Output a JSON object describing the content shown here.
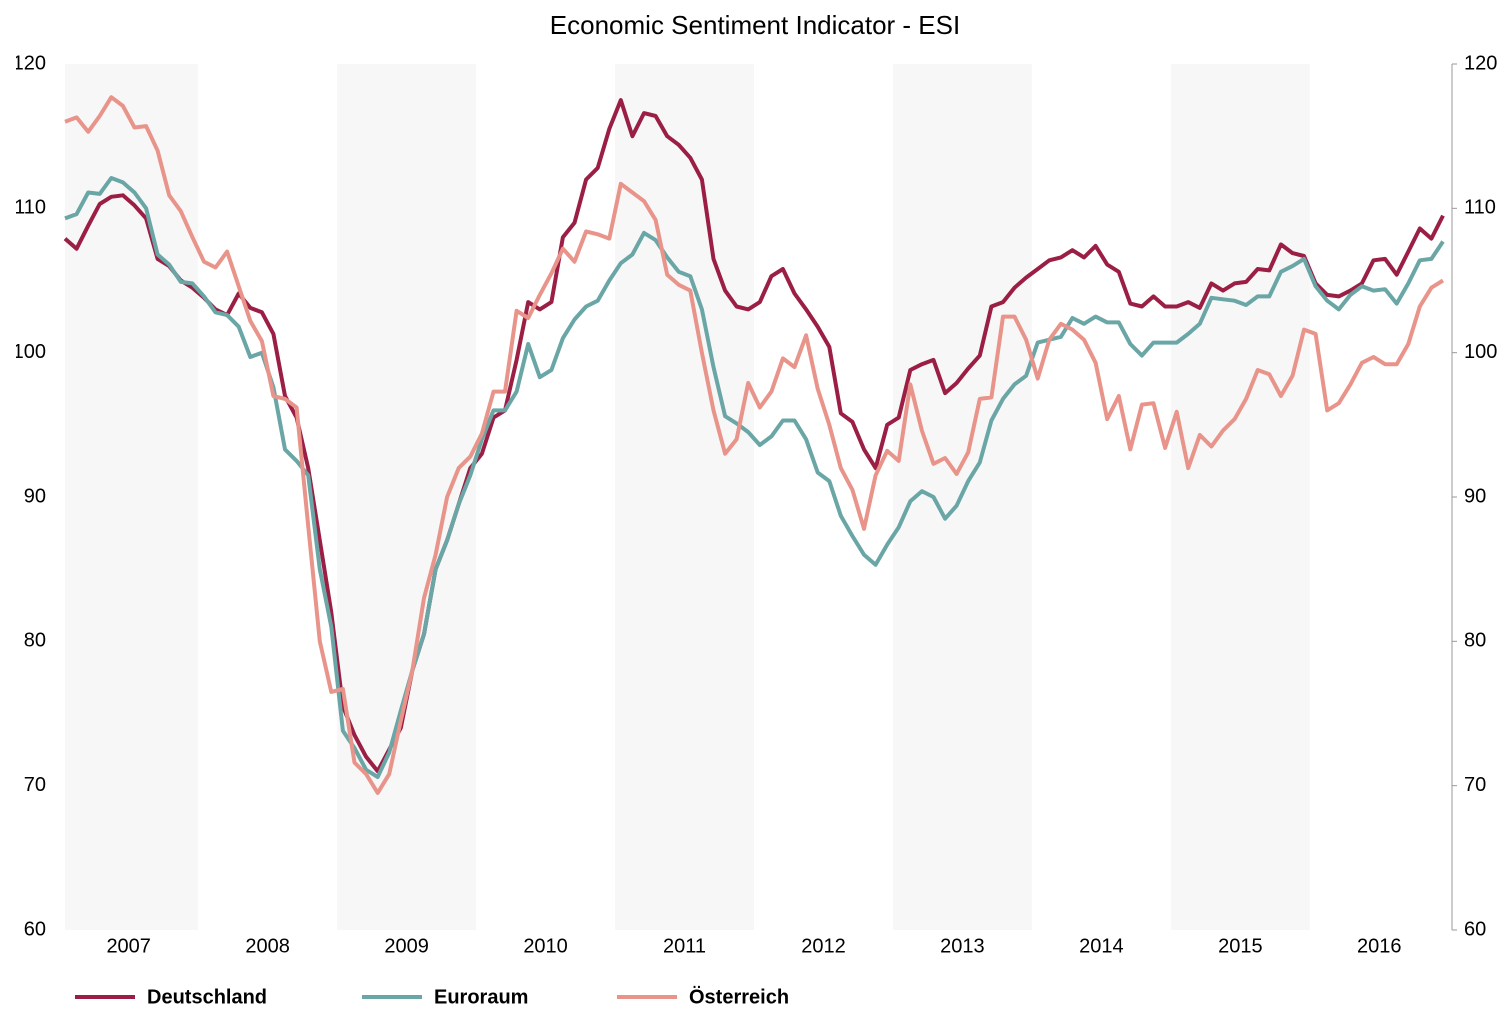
{
  "chart_data": {
    "type": "line",
    "title": "Economic Sentiment Indicator - ESI",
    "categories": [
      "2007",
      null,
      null,
      null,
      null,
      null,
      null,
      null,
      null,
      null,
      null,
      null,
      "2008",
      null,
      null,
      null,
      null,
      null,
      null,
      null,
      null,
      null,
      null,
      null,
      "2009",
      null,
      null,
      null,
      null,
      null,
      null,
      null,
      null,
      null,
      null,
      null,
      "2010",
      null,
      null,
      null,
      null,
      null,
      null,
      null,
      null,
      null,
      null,
      null,
      "2011",
      null,
      null,
      null,
      null,
      null,
      null,
      null,
      null,
      null,
      null,
      null,
      "2012",
      null,
      null,
      null,
      null,
      null,
      null,
      null,
      null,
      null,
      null,
      null,
      "2013",
      null,
      null,
      null,
      null,
      null,
      null,
      null,
      null,
      null,
      null,
      null,
      "2014",
      null,
      null,
      null,
      null,
      null,
      null,
      null,
      null,
      null,
      null,
      null,
      "2015",
      null,
      null,
      null,
      null,
      null,
      null,
      null,
      null,
      null,
      null,
      null,
      "2016",
      null,
      null,
      null,
      null,
      null,
      null,
      null,
      null,
      null,
      null,
      null
    ],
    "series": [
      {
        "name": "Deutschland",
        "color": "#9b1f45",
        "values": [
          107.9,
          107.2,
          108.8,
          110.3,
          110.8,
          110.9,
          110.2,
          109.3,
          106.5,
          106.0,
          105.0,
          104.5,
          103.8,
          103.0,
          102.6,
          104.1,
          103.1,
          102.8,
          101.3,
          97.0,
          95.5,
          92.0,
          87.0,
          82.0,
          75.5,
          73.5,
          72.0,
          71.0,
          72.5,
          74.0,
          78.0,
          80.5,
          85.0,
          87.0,
          89.5,
          92.0,
          93.0,
          95.5,
          96.0,
          99.5,
          103.5,
          103.0,
          103.5,
          108.0,
          109.0,
          112.0,
          112.8,
          115.5,
          117.5,
          115.0,
          116.6,
          116.4,
          115.0,
          114.4,
          113.5,
          112.0,
          106.5,
          104.3,
          103.2,
          103.0,
          103.5,
          105.3,
          105.8,
          104.1,
          103.0,
          101.8,
          100.4,
          95.8,
          95.2,
          93.3,
          92.0,
          95.0,
          95.5,
          98.8,
          99.2,
          99.5,
          97.2,
          97.9,
          98.9,
          99.8,
          103.2,
          103.5,
          104.5,
          105.2,
          105.8,
          106.4,
          106.6,
          107.1,
          106.6,
          107.4,
          106.1,
          105.6,
          103.4,
          103.2,
          103.9,
          103.2,
          103.2,
          103.5,
          103.1,
          104.8,
          104.3,
          104.8,
          104.9,
          105.8,
          105.7,
          107.5,
          106.9,
          106.7,
          104.8,
          104.0,
          103.9,
          104.3,
          104.8,
          106.4,
          106.5,
          105.4,
          107.0,
          108.6,
          107.9,
          109.5
        ]
      },
      {
        "name": "Euroraum",
        "color": "#6aa6a6",
        "values": [
          109.3,
          109.6,
          111.1,
          111.0,
          112.1,
          111.8,
          111.1,
          110.0,
          106.8,
          106.1,
          104.9,
          104.8,
          103.9,
          102.8,
          102.6,
          101.8,
          99.7,
          100.0,
          97.6,
          93.3,
          92.5,
          91.5,
          85.0,
          81.0,
          73.8,
          72.6,
          71.1,
          70.6,
          72.3,
          75.2,
          78.0,
          80.5,
          85.0,
          87.0,
          89.5,
          91.5,
          94.0,
          96.0,
          96.0,
          97.3,
          100.6,
          98.3,
          98.8,
          101.0,
          102.3,
          103.2,
          103.6,
          105.0,
          106.2,
          106.8,
          108.3,
          107.8,
          106.6,
          105.6,
          105.3,
          103.0,
          99.0,
          95.6,
          95.1,
          94.5,
          93.6,
          94.2,
          95.3,
          95.3,
          94.0,
          91.7,
          91.1,
          88.7,
          87.3,
          86.0,
          85.3,
          86.7,
          87.9,
          89.7,
          90.4,
          90.0,
          88.5,
          89.4,
          91.1,
          92.4,
          95.3,
          96.8,
          97.8,
          98.4,
          100.7,
          100.9,
          101.1,
          102.4,
          102.0,
          102.5,
          102.1,
          102.1,
          100.6,
          99.8,
          100.7,
          100.7,
          100.7,
          101.3,
          102.0,
          103.8,
          103.7,
          103.6,
          103.3,
          103.9,
          103.9,
          105.6,
          106.0,
          106.5,
          104.6,
          103.6,
          103.0,
          104.0,
          104.6,
          104.3,
          104.4,
          103.4,
          104.8,
          106.4,
          106.5,
          107.7
        ]
      },
      {
        "name": "Österreich",
        "color": "#e8948a",
        "values": [
          116.0,
          116.3,
          115.3,
          116.4,
          117.7,
          117.1,
          115.6,
          115.7,
          114.0,
          110.9,
          109.8,
          108.0,
          106.3,
          105.9,
          107.0,
          104.6,
          102.2,
          100.8,
          97.0,
          96.8,
          96.2,
          88.0,
          80.0,
          76.5,
          76.7,
          71.6,
          70.8,
          69.5,
          70.8,
          74.5,
          78.0,
          83.0,
          86.0,
          90.0,
          92.0,
          92.8,
          94.4,
          97.3,
          97.3,
          102.9,
          102.4,
          104.0,
          105.5,
          107.2,
          106.3,
          108.4,
          108.2,
          107.9,
          111.7,
          111.1,
          110.5,
          109.2,
          105.4,
          104.7,
          104.3,
          100.0,
          96.0,
          93.0,
          94.0,
          97.9,
          96.2,
          97.3,
          99.6,
          99.0,
          101.2,
          97.5,
          95.0,
          92.0,
          90.5,
          87.8,
          91.5,
          93.2,
          92.5,
          97.8,
          94.6,
          92.3,
          92.7,
          91.6,
          93.1,
          96.8,
          96.9,
          102.5,
          102.5,
          100.9,
          98.2,
          100.9,
          102.0,
          101.6,
          100.9,
          99.3,
          95.4,
          97.0,
          93.3,
          96.4,
          96.5,
          93.4,
          95.9,
          92.0,
          94.3,
          93.5,
          94.6,
          95.4,
          96.8,
          98.8,
          98.5,
          97.0,
          98.4,
          101.6,
          101.3,
          96.0,
          96.5,
          97.8,
          99.3,
          99.7,
          99.2,
          99.2,
          100.6,
          103.2,
          104.5,
          105.0
        ]
      }
    ],
    "ylim": [
      60,
      120
    ],
    "yticks": [
      60,
      70,
      80,
      90,
      100,
      110,
      120
    ],
    "y2lim": [
      60,
      120
    ],
    "y2ticks": [
      60,
      70,
      80,
      90,
      100,
      110,
      120
    ],
    "legend": "bottom-left"
  }
}
